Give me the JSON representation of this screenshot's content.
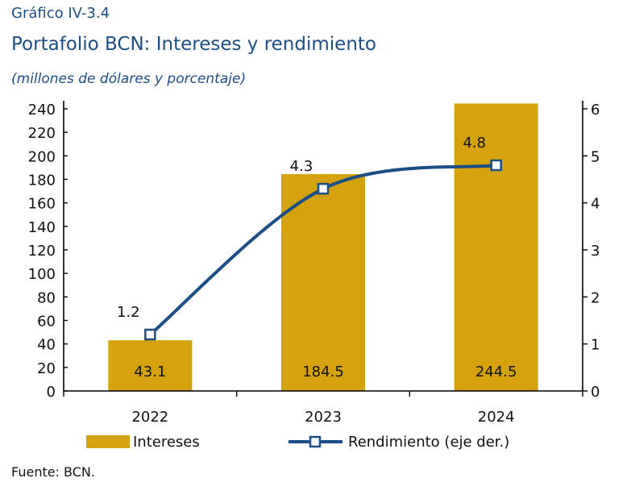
{
  "header": {
    "label": "Gráfico IV-3.4",
    "title": "Portafolio BCN: Intereses y rendimiento",
    "subtitle": "(millones de dólares y porcentaje)"
  },
  "footer": {
    "source": "Fuente: BCN."
  },
  "colors": {
    "bar": "#d4a20c",
    "line": "#1a4e86",
    "text": "#111111"
  },
  "chart_data": {
    "type": "bar",
    "categories": [
      "2022",
      "2023",
      "2024"
    ],
    "series": [
      {
        "name": "Intereses",
        "type": "bar",
        "axis": "left",
        "values": [
          43.1,
          184.5,
          244.5
        ],
        "labels": [
          "43.1",
          "184.5",
          "244.5"
        ]
      },
      {
        "name": "Rendimiento (eje der.)",
        "type": "line",
        "axis": "right",
        "values": [
          1.2,
          4.3,
          4.8
        ],
        "labels": [
          "1.2",
          "4.3",
          "4.8"
        ]
      }
    ],
    "ylim_left": [
      0,
      240
    ],
    "yticks_left": [
      "0",
      "20",
      "40",
      "60",
      "80",
      "100",
      "120",
      "140",
      "160",
      "180",
      "200",
      "220",
      "240"
    ],
    "ylim_right": [
      0,
      6
    ],
    "yticks_right": [
      "0",
      "1",
      "2",
      "3",
      "4",
      "5",
      "6"
    ],
    "grid": false,
    "legend_position": "bottom"
  }
}
